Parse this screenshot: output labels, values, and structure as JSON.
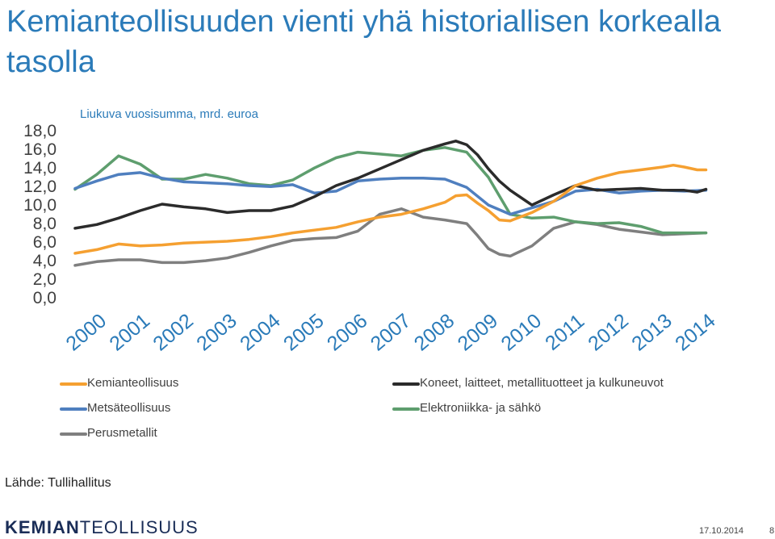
{
  "slide": {
    "title": "Kemianteollisuuden vienti yhä historiallisen korkealla tasolla",
    "source": "Lähde: Tullihallitus",
    "logo_part1": "KEMIAN",
    "logo_part2": "TEOLLISUUS",
    "date": "17.10.2014",
    "page": "8"
  },
  "chart_data": {
    "type": "line",
    "subtitle": "Liukuva vuosisumma, mrd. euroa",
    "ylim": [
      0,
      18
    ],
    "y_ticks": [
      "18,0",
      "16,0",
      "14,0",
      "12,0",
      "10,0",
      "8,0",
      "6,0",
      "4,0",
      "2,0",
      "0,0"
    ],
    "x_ticks": [
      "2000",
      "2001",
      "2002",
      "2003",
      "2004",
      "2005",
      "2006",
      "2007",
      "2008",
      "2009",
      "2010",
      "2011",
      "2012",
      "2013",
      "2014"
    ],
    "xlim": [
      2000,
      2014.75
    ],
    "grid": false,
    "legend_position": "bottom",
    "series": [
      {
        "name": "Kemianteollisuus",
        "color": "#f5a031",
        "x": [
          2000,
          2000.5,
          2001,
          2001.5,
          2002,
          2002.5,
          2003,
          2003.5,
          2004,
          2004.5,
          2005,
          2005.5,
          2006,
          2006.5,
          2007,
          2007.5,
          2008,
          2008.5,
          2008.75,
          2009,
          2009.25,
          2009.5,
          2009.75,
          2010,
          2010.5,
          2011,
          2011.5,
          2012,
          2012.5,
          2013,
          2013.5,
          2013.75,
          2014,
          2014.3,
          2014.5
        ],
        "values": [
          4.7,
          5.1,
          5.7,
          5.5,
          5.6,
          5.8,
          5.9,
          6.0,
          6.2,
          6.5,
          6.9,
          7.2,
          7.5,
          8.1,
          8.6,
          8.9,
          9.5,
          10.2,
          10.9,
          11.0,
          10.1,
          9.3,
          8.3,
          8.2,
          9.1,
          10.3,
          12.0,
          12.8,
          13.4,
          13.7,
          14.0,
          14.2,
          14.0,
          13.7,
          13.7
        ]
      },
      {
        "name": "Koneet, laitteet, metallituotteet ja kulkuneuvot",
        "color": "#2b2b2b",
        "x": [
          2000,
          2000.5,
          2001,
          2001.5,
          2002,
          2002.5,
          2003,
          2003.5,
          2004,
          2004.5,
          2005,
          2005.5,
          2006,
          2006.5,
          2007,
          2007.5,
          2008,
          2008.5,
          2008.75,
          2009,
          2009.25,
          2009.5,
          2009.75,
          2010,
          2010.5,
          2011,
          2011.5,
          2012,
          2012.5,
          2013,
          2013.5,
          2014,
          2014.3,
          2014.5
        ],
        "values": [
          7.4,
          7.8,
          8.5,
          9.3,
          10.0,
          9.7,
          9.5,
          9.1,
          9.3,
          9.3,
          9.8,
          10.8,
          12.0,
          12.8,
          13.8,
          14.8,
          15.8,
          16.5,
          16.8,
          16.4,
          15.3,
          13.8,
          12.5,
          11.5,
          9.9,
          11.0,
          12.0,
          11.5,
          11.6,
          11.7,
          11.5,
          11.5,
          11.3,
          11.6
        ]
      },
      {
        "name": "Metsäteollisuus",
        "color": "#4f7fbf",
        "x": [
          2000,
          2000.5,
          2001,
          2001.5,
          2002,
          2002.5,
          2003,
          2003.5,
          2004,
          2004.5,
          2005,
          2005.5,
          2006,
          2006.5,
          2007,
          2007.5,
          2008,
          2008.5,
          2009,
          2009.5,
          2010,
          2010.5,
          2011,
          2011.5,
          2012,
          2012.5,
          2013,
          2013.5,
          2014,
          2014.5
        ],
        "values": [
          11.7,
          12.5,
          13.2,
          13.4,
          12.8,
          12.4,
          12.3,
          12.2,
          12.0,
          11.9,
          12.1,
          11.2,
          11.4,
          12.5,
          12.7,
          12.8,
          12.8,
          12.7,
          11.8,
          9.9,
          8.9,
          9.6,
          10.3,
          11.4,
          11.6,
          11.2,
          11.4,
          11.5,
          11.4,
          11.5
        ]
      },
      {
        "name": "Elektroniikka- ja sähkö",
        "color": "#5e9e6e",
        "x": [
          2000,
          2000.5,
          2001,
          2001.5,
          2002,
          2002.5,
          2003,
          2003.5,
          2004,
          2004.5,
          2005,
          2005.5,
          2006,
          2006.5,
          2007,
          2007.5,
          2008,
          2008.5,
          2009,
          2009.5,
          2010,
          2010.5,
          2011,
          2011.5,
          2012,
          2012.5,
          2013,
          2013.5,
          2014,
          2014.5
        ],
        "values": [
          11.6,
          13.2,
          15.2,
          14.3,
          12.7,
          12.7,
          13.2,
          12.8,
          12.2,
          12.0,
          12.6,
          13.9,
          15.0,
          15.6,
          15.4,
          15.2,
          15.8,
          16.1,
          15.6,
          12.9,
          8.9,
          8.5,
          8.6,
          8.1,
          7.9,
          8.0,
          7.6,
          6.9,
          6.9,
          6.9
        ]
      },
      {
        "name": "Perusmetallit",
        "color": "#7f7f7f",
        "x": [
          2000,
          2000.5,
          2001,
          2001.5,
          2002,
          2002.5,
          2003,
          2003.5,
          2004,
          2004.5,
          2005,
          2005.5,
          2006,
          2006.5,
          2007,
          2007.5,
          2008,
          2008.5,
          2009,
          2009.25,
          2009.5,
          2009.75,
          2010,
          2010.5,
          2011,
          2011.5,
          2012,
          2012.5,
          2013,
          2013.5,
          2014,
          2014.5
        ],
        "values": [
          3.4,
          3.8,
          4.0,
          4.0,
          3.7,
          3.7,
          3.9,
          4.2,
          4.8,
          5.5,
          6.1,
          6.3,
          6.4,
          7.1,
          8.9,
          9.5,
          8.6,
          8.3,
          7.9,
          6.6,
          5.2,
          4.6,
          4.4,
          5.5,
          7.4,
          8.1,
          7.8,
          7.3,
          7.0,
          6.7,
          6.8,
          6.9
        ]
      }
    ]
  }
}
